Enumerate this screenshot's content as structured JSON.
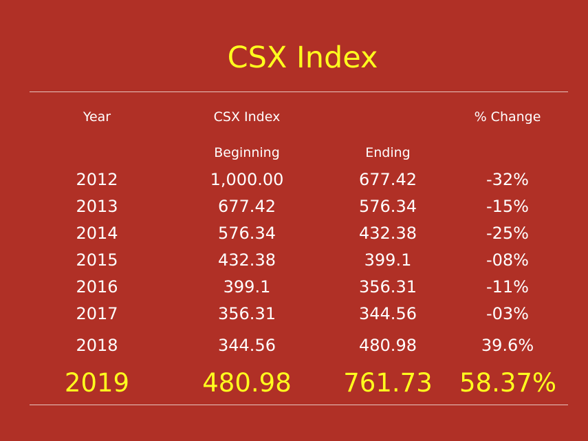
{
  "title": "CSX Index",
  "header": {
    "year": "Year",
    "index": "CSX Index",
    "change": "% Change",
    "beginning": "Beginning",
    "ending": "Ending"
  },
  "rows": [
    {
      "year": "2012",
      "beginning": "1,000.00",
      "ending": "677.42",
      "change": "-32%"
    },
    {
      "year": "2013",
      "beginning": "677.42",
      "ending": "576.34",
      "change": "-15%"
    },
    {
      "year": "2014",
      "beginning": "576.34",
      "ending": "432.38",
      "change": "-25%"
    },
    {
      "year": "2015",
      "beginning": "432.38",
      "ending": "399.1",
      "change": "-08%"
    },
    {
      "year": "2016",
      "beginning": "399.1",
      "ending": "356.31",
      "change": "-11%"
    },
    {
      "year": "2017",
      "beginning": "356.31",
      "ending": "344.56",
      "change": "-03%"
    },
    {
      "year": "2018",
      "beginning": "344.56",
      "ending": "480.98",
      "change": "39.6%"
    }
  ],
  "highlight": {
    "year": "2019",
    "beginning": "480.98",
    "ending": "761.73",
    "change": "58.37%"
  },
  "colors": {
    "background": "#b03026",
    "highlight": "#ffff1e",
    "text": "#ffffff"
  }
}
